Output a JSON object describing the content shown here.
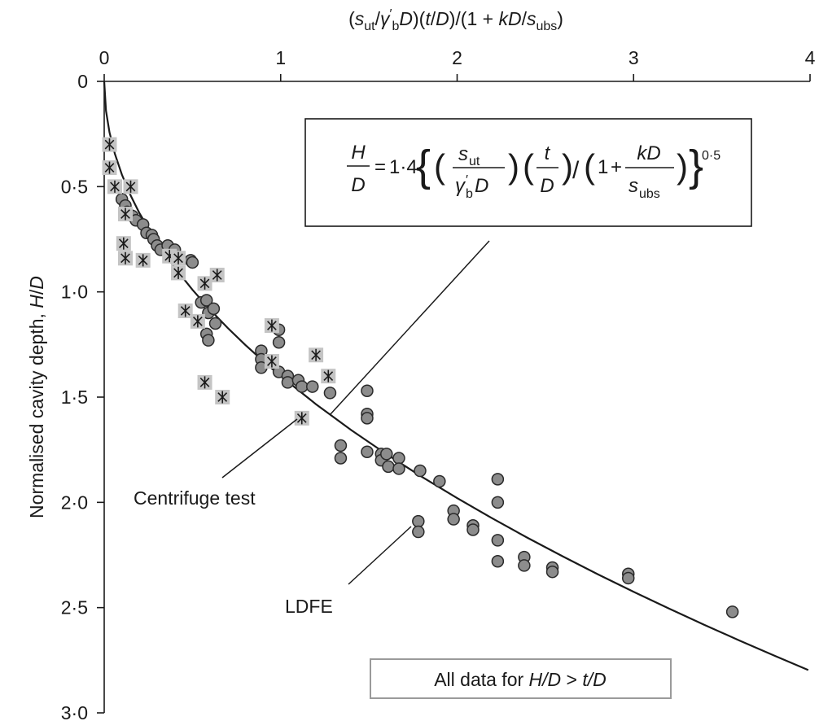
{
  "chart_data": {
    "type": "scatter",
    "x_axis": {
      "label": "(s_ut/γ′_bD)(t/D)/(1 + kD/s_ubs)",
      "position": "top",
      "range": [
        0,
        4
      ],
      "ticks": [
        0,
        1,
        2,
        3,
        4
      ],
      "tick_labels": [
        "0",
        "1",
        "2",
        "3",
        "4"
      ]
    },
    "y_axis": {
      "label": "Normalised cavity depth, H/D",
      "inverted": true,
      "range": [
        0,
        3.0
      ],
      "ticks": [
        0,
        0.5,
        1.0,
        1.5,
        2.0,
        2.5,
        3.0
      ],
      "tick_labels": [
        "0",
        "0·5",
        "1·0",
        "1·5",
        "2·0",
        "2·5",
        "3·0"
      ]
    },
    "equation": {
      "lhs_num": "H",
      "lhs_den": "D",
      "coef": "1·4",
      "su_t": "s",
      "su_t_sub": "ut",
      "gamma": "γ",
      "gamma_sub": "b",
      "gamma_D": "D",
      "t_num": "t",
      "t_den": "D",
      "one": "1",
      "kd_num": "kD",
      "s_ubs": "s",
      "s_ubs_sub": "ubs",
      "exponent": "0·5"
    },
    "annotations": {
      "centrifuge": "Centrifuge test",
      "ldfe": "LDFE",
      "note_prefix": "All data for ",
      "note_hd": "H/D",
      "note_gt": " > ",
      "note_td": "t/D"
    },
    "fit_curve": {
      "formula": "H/D = 1.4 x^0.5",
      "x": [
        0,
        0.01,
        0.03,
        0.06,
        0.1,
        0.15,
        0.2,
        0.3,
        0.4,
        0.5,
        0.6,
        0.7,
        0.8,
        0.9,
        1.0,
        1.2,
        1.4,
        1.6,
        1.8,
        2.0,
        2.2,
        2.4,
        2.6,
        2.8,
        3.0,
        3.2,
        3.4,
        3.6,
        3.8,
        3.99
      ]
    },
    "series": [
      {
        "name": "Centrifuge test",
        "marker": "asterisk",
        "points": [
          [
            0.03,
            0.3
          ],
          [
            0.03,
            0.41
          ],
          [
            0.06,
            0.5
          ],
          [
            0.15,
            0.5
          ],
          [
            0.12,
            0.63
          ],
          [
            0.11,
            0.77
          ],
          [
            0.12,
            0.84
          ],
          [
            0.22,
            0.85
          ],
          [
            0.37,
            0.83
          ],
          [
            0.42,
            0.84
          ],
          [
            0.42,
            0.91
          ],
          [
            0.57,
            0.96
          ],
          [
            0.64,
            0.92
          ],
          [
            0.46,
            1.09
          ],
          [
            0.53,
            1.14
          ],
          [
            0.57,
            1.43
          ],
          [
            0.67,
            1.5
          ],
          [
            0.95,
            1.16
          ],
          [
            0.95,
            1.33
          ],
          [
            1.2,
            1.3
          ],
          [
            1.27,
            1.4
          ],
          [
            1.12,
            1.6
          ]
        ]
      },
      {
        "name": "LDFE",
        "marker": "circle",
        "points": [
          [
            0.1,
            0.56
          ],
          [
            0.12,
            0.59
          ],
          [
            0.13,
            0.62
          ],
          [
            0.16,
            0.64
          ],
          [
            0.18,
            0.66
          ],
          [
            0.22,
            0.68
          ],
          [
            0.24,
            0.72
          ],
          [
            0.27,
            0.73
          ],
          [
            0.28,
            0.75
          ],
          [
            0.3,
            0.78
          ],
          [
            0.32,
            0.8
          ],
          [
            0.36,
            0.78
          ],
          [
            0.4,
            0.8
          ],
          [
            0.49,
            0.85
          ],
          [
            0.5,
            0.86
          ],
          [
            0.55,
            1.05
          ],
          [
            0.58,
            1.04
          ],
          [
            0.59,
            1.1
          ],
          [
            0.62,
            1.08
          ],
          [
            0.58,
            1.2
          ],
          [
            0.59,
            1.23
          ],
          [
            0.63,
            1.15
          ],
          [
            0.89,
            1.28
          ],
          [
            0.89,
            1.32
          ],
          [
            0.89,
            1.36
          ],
          [
            0.99,
            1.18
          ],
          [
            0.99,
            1.24
          ],
          [
            0.99,
            1.38
          ],
          [
            1.04,
            1.4
          ],
          [
            1.04,
            1.43
          ],
          [
            1.1,
            1.42
          ],
          [
            1.12,
            1.45
          ],
          [
            1.18,
            1.45
          ],
          [
            1.28,
            1.48
          ],
          [
            1.34,
            1.73
          ],
          [
            1.34,
            1.79
          ],
          [
            1.49,
            1.47
          ],
          [
            1.49,
            1.58
          ],
          [
            1.49,
            1.6
          ],
          [
            1.49,
            1.76
          ],
          [
            1.57,
            1.77
          ],
          [
            1.57,
            1.8
          ],
          [
            1.6,
            1.77
          ],
          [
            1.61,
            1.83
          ],
          [
            1.67,
            1.79
          ],
          [
            1.67,
            1.84
          ],
          [
            1.79,
            1.85
          ],
          [
            1.9,
            1.9
          ],
          [
            1.98,
            2.04
          ],
          [
            1.98,
            2.08
          ],
          [
            1.78,
            2.09
          ],
          [
            1.78,
            2.14
          ],
          [
            2.09,
            2.11
          ],
          [
            2.09,
            2.13
          ],
          [
            2.23,
            1.89
          ],
          [
            2.23,
            2.0
          ],
          [
            2.23,
            2.18
          ],
          [
            2.23,
            2.28
          ],
          [
            2.38,
            2.26
          ],
          [
            2.38,
            2.3
          ],
          [
            2.54,
            2.31
          ],
          [
            2.54,
            2.33
          ],
          [
            2.97,
            2.34
          ],
          [
            2.97,
            2.36
          ],
          [
            3.56,
            2.52
          ]
        ]
      }
    ]
  }
}
